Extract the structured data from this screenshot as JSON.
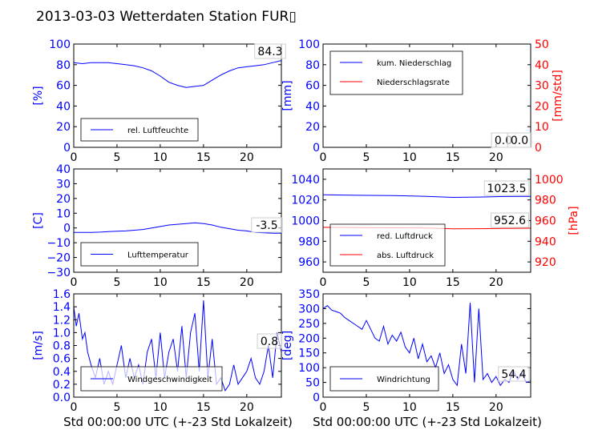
{
  "title": "2013-03-03 Wetterdaten Station FUR▯",
  "xlabel": "Std 00:00:00 UTC (+-23 Std Lokalzeit)",
  "colors": {
    "primary": "#0000ff",
    "secondary": "#ff0000"
  },
  "chart_data": [
    {
      "type": "line",
      "ylabel": "[%]",
      "xlim": [
        0,
        24
      ],
      "ylim": [
        0,
        100
      ],
      "xticks": [
        "0",
        "5",
        "10",
        "15",
        "20"
      ],
      "yticks": [
        "0",
        "20",
        "40",
        "60",
        "80",
        "100"
      ],
      "legend_placement": "bottom-left",
      "annotations": [
        "84.3"
      ],
      "series": [
        {
          "name": "rel. Luftfeuchte",
          "color": "#0000ff",
          "x": [
            0,
            1,
            2,
            3,
            4,
            5,
            6,
            7,
            8,
            9,
            10,
            11,
            12,
            13,
            14,
            15,
            16,
            17,
            18,
            19,
            20,
            21,
            22,
            23,
            24
          ],
          "y": [
            82,
            81,
            82,
            82,
            82,
            81,
            80,
            79,
            77,
            74,
            69,
            63,
            60,
            58,
            59,
            60,
            65,
            70,
            74,
            77,
            78,
            79,
            80,
            82,
            84
          ]
        }
      ]
    },
    {
      "type": "line",
      "ylabel": "[mm]",
      "y2label": "[mm/std]",
      "xlim": [
        0,
        24
      ],
      "ylim": [
        0,
        100
      ],
      "y2lim": [
        0,
        50
      ],
      "xticks": [
        "0",
        "5",
        "10",
        "15",
        "20"
      ],
      "yticks": [
        "0",
        "20",
        "40",
        "60",
        "80",
        "100"
      ],
      "y2ticks": [
        "0",
        "10",
        "20",
        "30",
        "40",
        "50"
      ],
      "legend_placement": "top-left",
      "annotations": [
        "0.0",
        "0.0"
      ],
      "series": [
        {
          "name": "kum. Niederschlag",
          "color": "#0000ff",
          "axis": "left",
          "x": [
            0,
            24
          ],
          "y": [
            0,
            0
          ]
        },
        {
          "name": "Niederschlagsrate",
          "color": "#ff0000",
          "axis": "right",
          "x": [
            0,
            24
          ],
          "y": [
            0,
            0
          ]
        }
      ]
    },
    {
      "type": "line",
      "ylabel": "[C]",
      "xlim": [
        0,
        24
      ],
      "ylim": [
        -30,
        40
      ],
      "xticks": [
        "0",
        "5",
        "10",
        "15",
        "20"
      ],
      "yticks": [
        "−30",
        "−20",
        "−10",
        "0",
        "10",
        "20",
        "30",
        "40"
      ],
      "legend_placement": "bottom-left",
      "annotations": [
        "-3.5"
      ],
      "series": [
        {
          "name": "Lufttemperatur",
          "color": "#0000ff",
          "x": [
            0,
            1,
            2,
            3,
            4,
            5,
            6,
            7,
            8,
            9,
            10,
            11,
            12,
            13,
            14,
            15,
            16,
            17,
            18,
            19,
            20,
            21,
            22,
            23,
            24
          ],
          "y": [
            -3,
            -3,
            -3,
            -2.8,
            -2.5,
            -2.2,
            -2,
            -1.5,
            -1,
            0,
            1,
            2,
            2.5,
            3,
            3.5,
            3,
            2,
            0.5,
            -0.5,
            -1.5,
            -2,
            -3,
            -3.3,
            -3.5,
            -3.5
          ]
        }
      ]
    },
    {
      "type": "line",
      "ylabel": "[hPa]",
      "xlim": [
        0,
        24
      ],
      "ylim": [
        950,
        1050
      ],
      "y2lim": [
        910,
        1010
      ],
      "xticks": [
        "0",
        "5",
        "10",
        "15",
        "20"
      ],
      "yticks": [
        "960",
        "980",
        "1000",
        "1020",
        "1040"
      ],
      "y2ticks": [
        "920",
        "940",
        "960",
        "980",
        "1000"
      ],
      "legend_placement": "bottom-left",
      "annotations": [
        "1023.5",
        "952.6"
      ],
      "series": [
        {
          "name": "red. Luftdruck",
          "color": "#0000ff",
          "axis": "left",
          "x": [
            0,
            4,
            8,
            12,
            15,
            18,
            21,
            24
          ],
          "y": [
            1025,
            1024.5,
            1024.3,
            1023.5,
            1022.5,
            1022.8,
            1023.3,
            1023.5
          ]
        },
        {
          "name": "abs. Luftdruck",
          "color": "#ff0000",
          "axis": "right",
          "x": [
            0,
            4,
            8,
            12,
            15,
            18,
            21,
            24
          ],
          "y": [
            953.5,
            953.2,
            953,
            952.8,
            952,
            952.2,
            952.4,
            952.6
          ]
        }
      ]
    },
    {
      "type": "line",
      "ylabel": "[m/s]",
      "xlim": [
        0,
        24
      ],
      "ylim": [
        0,
        1.6
      ],
      "xticks": [
        "0",
        "5",
        "10",
        "15",
        "20"
      ],
      "yticks": [
        "0.0",
        "0.2",
        "0.4",
        "0.6",
        "0.8",
        "1.0",
        "1.2",
        "1.4",
        "1.6"
      ],
      "legend_placement": "bottom-left",
      "annotations": [
        "0.8"
      ],
      "series": [
        {
          "name": "Windgeschwindigkeit",
          "color": "#0000ff",
          "x": [
            0,
            0.3,
            0.6,
            1,
            1.3,
            1.6,
            2,
            2.5,
            3,
            3.5,
            4,
            4.5,
            5,
            5.5,
            6,
            6.5,
            7,
            7.5,
            8,
            8.5,
            9,
            9.5,
            10,
            10.5,
            11,
            11.5,
            12,
            12.5,
            13,
            13.5,
            14,
            14.5,
            15,
            15.5,
            16,
            16.5,
            17,
            17.5,
            18,
            18.5,
            19,
            19.5,
            20,
            20.5,
            21,
            21.5,
            22,
            22.5,
            23,
            23.5,
            24
          ],
          "y": [
            1.4,
            1.1,
            1.3,
            0.9,
            1.0,
            0.7,
            0.5,
            0.3,
            0.6,
            0.2,
            0.4,
            0.2,
            0.5,
            0.8,
            0.3,
            0.6,
            0.3,
            0.5,
            0.2,
            0.7,
            0.9,
            0.3,
            1.0,
            0.3,
            0.7,
            0.9,
            0.4,
            1.1,
            0.3,
            1.0,
            1.3,
            0.4,
            1.5,
            0.3,
            0.9,
            0.2,
            0.3,
            0.1,
            0.2,
            0.5,
            0.2,
            0.3,
            0.4,
            0.6,
            0.3,
            0.2,
            0.4,
            0.8,
            0.3,
            1.0,
            0.7
          ]
        }
      ]
    },
    {
      "type": "line",
      "ylabel": "[deg]",
      "xlim": [
        0,
        24
      ],
      "ylim": [
        0,
        350
      ],
      "xticks": [
        "0",
        "5",
        "10",
        "15",
        "20"
      ],
      "yticks": [
        "0",
        "50",
        "100",
        "150",
        "200",
        "250",
        "300",
        "350"
      ],
      "legend_placement": "bottom-left",
      "annotations": [
        "54.4"
      ],
      "series": [
        {
          "name": "Windrichtung",
          "color": "#0000ff",
          "x": [
            0,
            0.5,
            1,
            1.5,
            2,
            2.5,
            3,
            3.5,
            4,
            4.5,
            5,
            5.5,
            6,
            6.5,
            7,
            7.5,
            8,
            8.5,
            9,
            9.5,
            10,
            10.5,
            11,
            11.5,
            12,
            12.5,
            13,
            13.5,
            14,
            14.5,
            15,
            15.5,
            16,
            16.5,
            17,
            17.5,
            18,
            18.5,
            19,
            19.5,
            20,
            20.5,
            21,
            21.5,
            22,
            22.5,
            23,
            23.5,
            24
          ],
          "y": [
            300,
            310,
            295,
            290,
            285,
            270,
            260,
            250,
            240,
            230,
            260,
            230,
            200,
            190,
            240,
            180,
            210,
            190,
            220,
            170,
            150,
            200,
            130,
            180,
            120,
            140,
            100,
            150,
            80,
            110,
            60,
            40,
            180,
            80,
            320,
            50,
            300,
            60,
            80,
            50,
            70,
            40,
            60,
            50,
            90,
            60,
            80,
            50,
            55
          ]
        }
      ]
    }
  ]
}
